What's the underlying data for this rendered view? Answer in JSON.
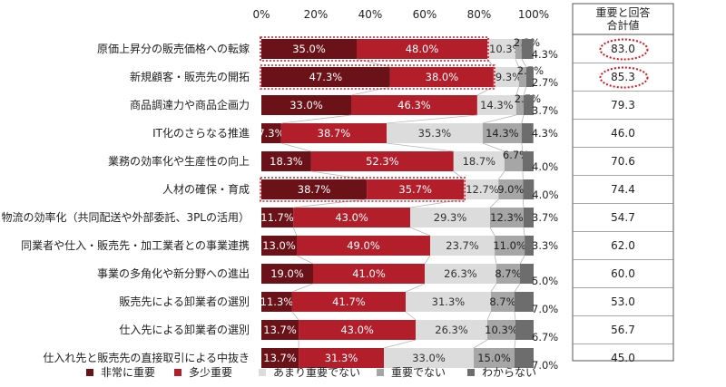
{
  "chart_data": {
    "type": "bar",
    "orientation": "horizontal",
    "stacked": true,
    "xlim": [
      0,
      100
    ],
    "ticks": [
      "0%",
      "20%",
      "40%",
      "60%",
      "80%",
      "100%"
    ],
    "grid": false,
    "legend_position": "bottom",
    "categories": [
      "原価上昇分の販売価格への転嫁",
      "新規顧客・販売先の開拓",
      "商品調達力や商品企画力",
      "IT化のさらなる推進",
      "業務の効率化や生産性の向上",
      "人材の確保・育成",
      "物流の効率化（共同配送や外部委託、3PLの活用）",
      "同業者や仕入・販売先・加工業者との事業連携",
      "事業の多角化や新分野への進出",
      "販売先による卸業者の選別",
      "仕入先による卸業者の選別",
      "仕入れ先と販売先の直接取引による中抜き"
    ],
    "series": [
      {
        "name": "非常に重要",
        "color": "#6b1219",
        "values": [
          35.0,
          47.3,
          33.0,
          7.3,
          18.3,
          38.7,
          11.7,
          13.0,
          19.0,
          11.3,
          13.7,
          13.7
        ],
        "labels": [
          "35.0%",
          "47.3%",
          "33.0%",
          "7.3%",
          "18.3%",
          "38.7%",
          "11.7%",
          "13.0%",
          "19.0%",
          "11.3%",
          "13.7%",
          "13.7%"
        ]
      },
      {
        "name": "多少重要",
        "color": "#b21f2b",
        "values": [
          48.0,
          38.0,
          46.3,
          38.7,
          52.3,
          35.7,
          43.0,
          49.0,
          41.0,
          41.7,
          43.0,
          31.3
        ],
        "labels": [
          "48.0%",
          "38.0%",
          "46.3%",
          "38.7%",
          "52.3%",
          "35.7%",
          "43.0%",
          "49.0%",
          "41.0%",
          "41.7%",
          "43.0%",
          "31.3%"
        ]
      },
      {
        "name": "あまり重要でない",
        "color": "#dcdcdc",
        "values": [
          10.3,
          9.3,
          14.3,
          35.3,
          18.7,
          12.7,
          29.3,
          23.7,
          26.3,
          31.3,
          26.3,
          33.0
        ],
        "labels": [
          "10.3%",
          "9.3%",
          "14.3%",
          "35.3%",
          "18.7%",
          "12.7%",
          "29.3%",
          "23.7%",
          "26.3%",
          "31.3%",
          "26.3%",
          "33.0%"
        ]
      },
      {
        "name": "重要でない",
        "color": "#a6a6a6",
        "values": [
          2.3,
          2.7,
          2.7,
          14.3,
          6.7,
          9.0,
          12.3,
          11.0,
          8.7,
          8.7,
          10.3,
          15.0
        ],
        "labels": [
          "2.3%",
          "2.7%",
          "2.7%",
          "14.3%",
          "6.7%",
          "9.0%",
          "12.3%",
          "11.0%",
          "8.7%",
          "8.7%",
          "10.3%",
          "15.0%"
        ]
      },
      {
        "name": "わからない",
        "color": "#6d6d6d",
        "values": [
          4.3,
          2.7,
          3.7,
          4.3,
          4.0,
          4.0,
          3.7,
          3.3,
          5.0,
          7.0,
          6.7,
          7.0
        ],
        "labels": [
          "4.3%",
          "2.7%",
          "3.7%",
          "4.3%",
          "4.0%",
          "4.0%",
          "3.7%",
          "3.3%",
          "5.0%",
          "7.0%",
          "6.7%",
          "7.0%"
        ]
      }
    ],
    "summary": {
      "header": [
        "重要と回答",
        "合計値"
      ],
      "values": [
        "83.0",
        "85.3",
        "79.3",
        "46.0",
        "70.6",
        "74.4",
        "54.7",
        "62.0",
        "60.0",
        "53.0",
        "56.7",
        "45.0"
      ]
    },
    "highlighted_bars": [
      0,
      1,
      5
    ],
    "highlighted_summary": [
      0,
      1
    ]
  }
}
